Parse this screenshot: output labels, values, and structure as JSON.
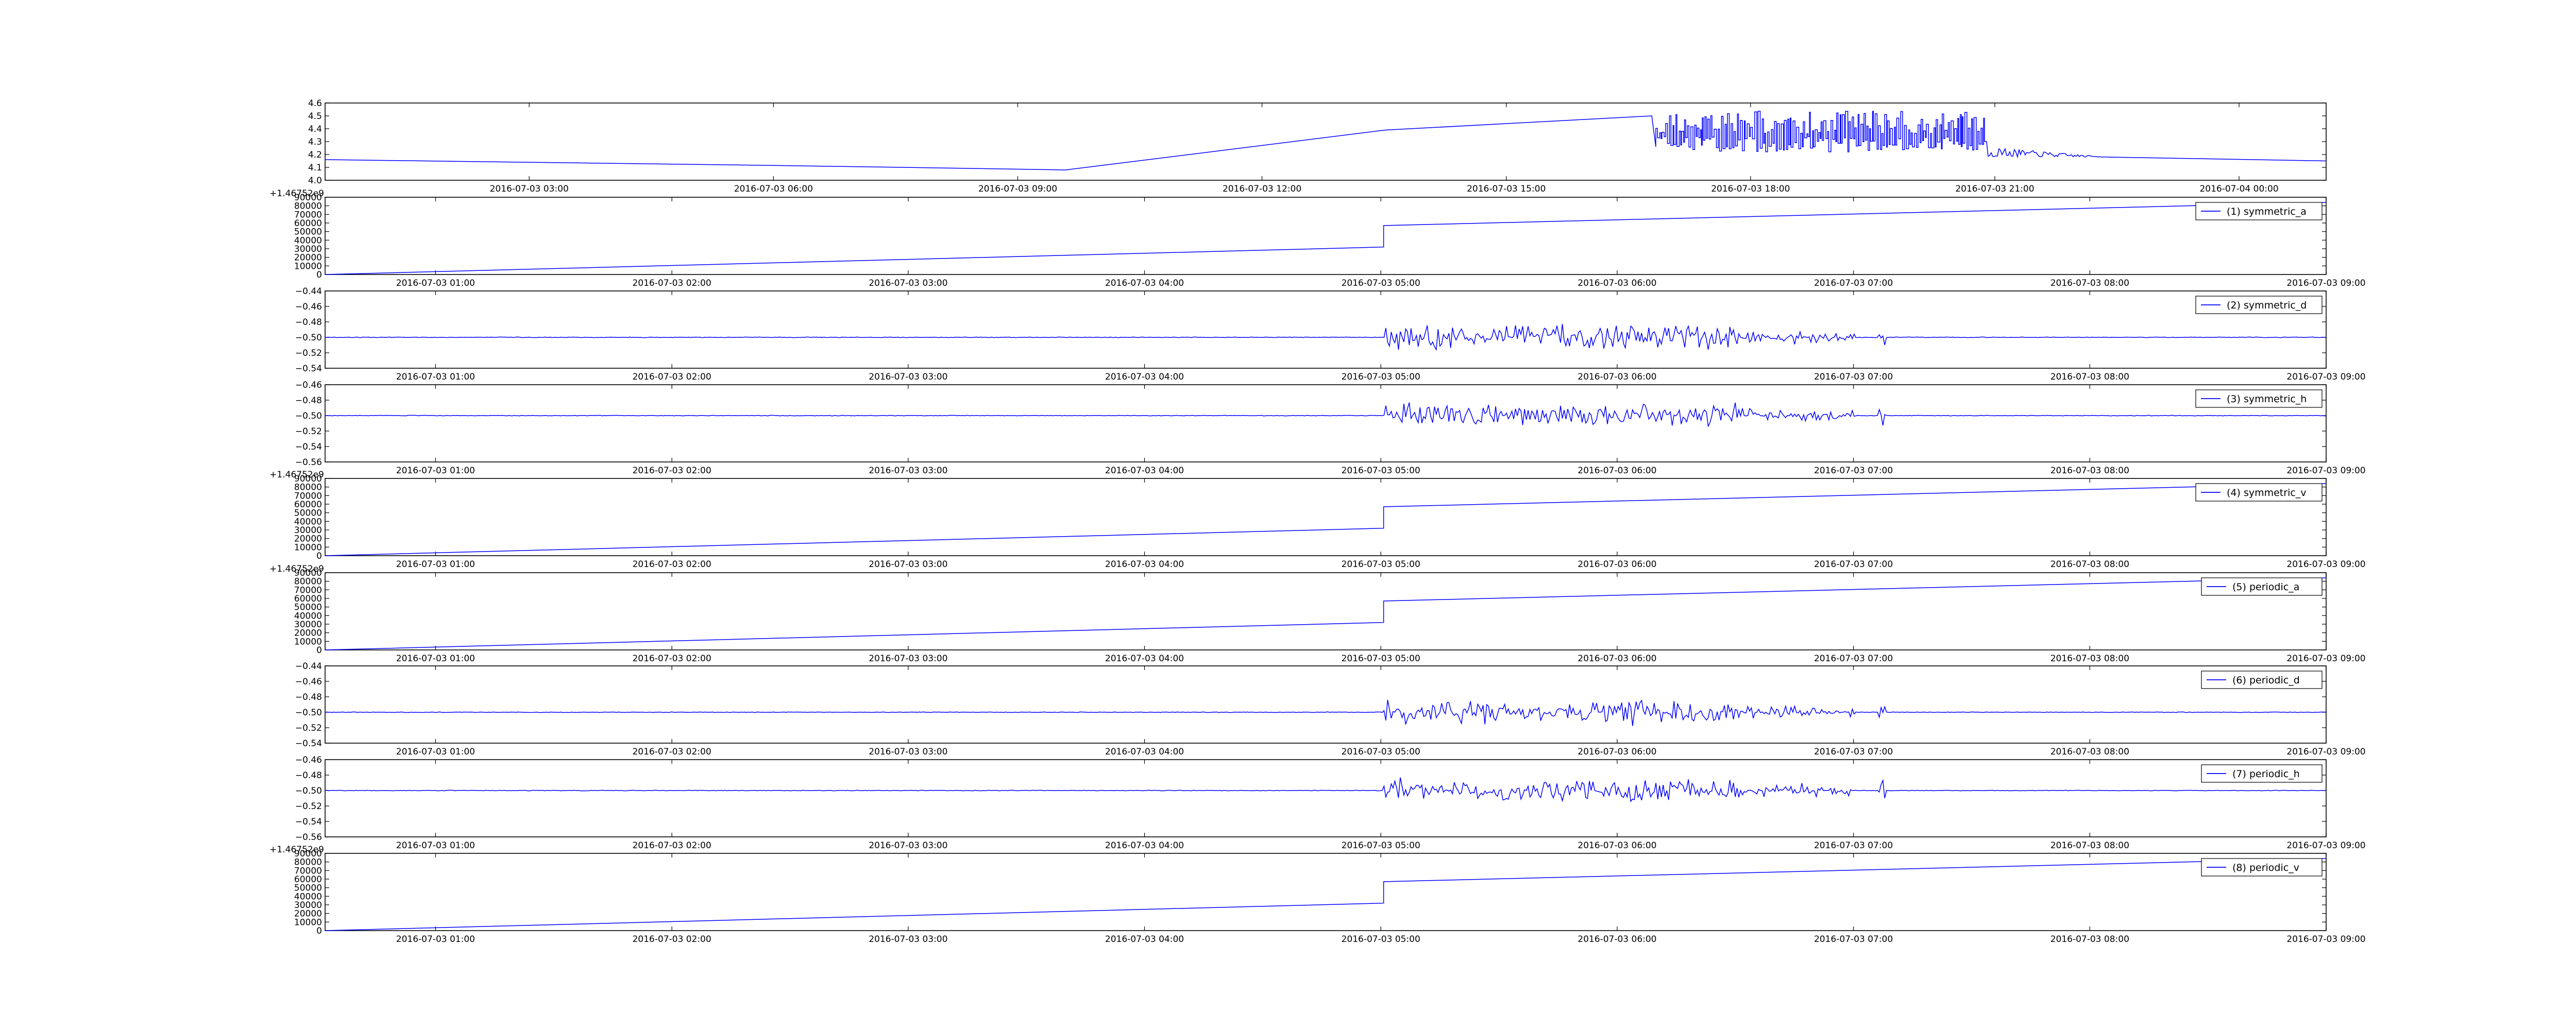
{
  "chart_data": [
    {
      "type": "line",
      "ylim": [
        4.0,
        4.6
      ],
      "yticks": [
        "4.0",
        "4.1",
        "4.2",
        "4.3",
        "4.4",
        "4.5",
        "4.6"
      ],
      "xticks": [
        "2016-07-03 03:00",
        "2016-07-03 06:00",
        "2016-07-03 09:00",
        "2016-07-03 12:00",
        "2016-07-03 15:00",
        "2016-07-03 18:00",
        "2016-07-03 21:00",
        "2016-07-04 00:00"
      ],
      "offset": "",
      "series": [
        {
          "name": "",
          "color": "#0000ff",
          "style": "top",
          "points": [
            [
              0,
              4.16
            ],
            [
              0.1,
              4.14
            ],
            [
              0.2,
              4.12
            ],
            [
              0.29,
              4.1
            ],
            [
              0.37,
              4.08
            ],
            [
              0.53,
              4.39
            ],
            [
              0.663,
              4.5
            ],
            [
              0.665,
              4.26
            ]
          ]
        }
      ],
      "grid": false
    },
    {
      "type": "line",
      "ylim": [
        0,
        90000
      ],
      "yticks": [
        "0",
        "10000",
        "20000",
        "30000",
        "40000",
        "50000",
        "60000",
        "70000",
        "80000",
        "90000"
      ],
      "xticks": [
        "2016-07-03 01:00",
        "2016-07-03 02:00",
        "2016-07-03 03:00",
        "2016-07-03 04:00",
        "2016-07-03 05:00",
        "2016-07-03 06:00",
        "2016-07-03 07:00",
        "2016-07-03 08:00",
        "2016-07-03 09:00"
      ],
      "offset": "+1.46752e9",
      "series": [
        {
          "name": "(1) symmetric_a",
          "color": "#0000ff",
          "style": "ramp",
          "points": [
            [
              0,
              0
            ],
            [
              0.529,
              32000
            ],
            [
              0.529,
              57000
            ],
            [
              1.0,
              84000
            ]
          ]
        }
      ],
      "legend": "top-right",
      "grid": false
    },
    {
      "type": "line",
      "ylim": [
        -0.54,
        -0.44
      ],
      "yticks": [
        "−0.54",
        "−0.52",
        "−0.50",
        "−0.48",
        "−0.46",
        "−0.44"
      ],
      "xticks": [
        "2016-07-03 01:00",
        "2016-07-03 02:00",
        "2016-07-03 03:00",
        "2016-07-03 04:00",
        "2016-07-03 05:00",
        "2016-07-03 06:00",
        "2016-07-03 07:00",
        "2016-07-03 08:00",
        "2016-07-03 09:00"
      ],
      "offset": "",
      "series": [
        {
          "name": "(2) symmetric_d",
          "color": "#0000ff",
          "style": "noise",
          "baseline": -0.5
        }
      ],
      "legend": "top-right",
      "grid": false
    },
    {
      "type": "line",
      "ylim": [
        -0.56,
        -0.46
      ],
      "yticks": [
        "−0.56",
        "−0.54",
        "−0.52",
        "−0.50",
        "−0.48",
        "−0.46"
      ],
      "xticks": [
        "2016-07-03 01:00",
        "2016-07-03 02:00",
        "2016-07-03 03:00",
        "2016-07-03 04:00",
        "2016-07-03 05:00",
        "2016-07-03 06:00",
        "2016-07-03 07:00",
        "2016-07-03 08:00",
        "2016-07-03 09:00"
      ],
      "offset": "",
      "series": [
        {
          "name": "(3) symmetric_h",
          "color": "#0000ff",
          "style": "noise",
          "baseline": -0.5
        }
      ],
      "legend": "top-right",
      "grid": false
    },
    {
      "type": "line",
      "ylim": [
        0,
        90000
      ],
      "yticks": [
        "0",
        "10000",
        "20000",
        "30000",
        "40000",
        "50000",
        "60000",
        "70000",
        "80000",
        "90000"
      ],
      "xticks": [
        "2016-07-03 01:00",
        "2016-07-03 02:00",
        "2016-07-03 03:00",
        "2016-07-03 04:00",
        "2016-07-03 05:00",
        "2016-07-03 06:00",
        "2016-07-03 07:00",
        "2016-07-03 08:00",
        "2016-07-03 09:00"
      ],
      "offset": "+1.46752e9",
      "series": [
        {
          "name": "(4) symmetric_v",
          "color": "#0000ff",
          "style": "ramp",
          "points": [
            [
              0,
              0
            ],
            [
              0.529,
              32000
            ],
            [
              0.529,
              57000
            ],
            [
              1.0,
              84000
            ]
          ]
        }
      ],
      "legend": "top-right",
      "grid": false
    },
    {
      "type": "line",
      "ylim": [
        0,
        90000
      ],
      "yticks": [
        "0",
        "10000",
        "20000",
        "30000",
        "40000",
        "50000",
        "60000",
        "70000",
        "80000",
        "90000"
      ],
      "xticks": [
        "2016-07-03 01:00",
        "2016-07-03 02:00",
        "2016-07-03 03:00",
        "2016-07-03 04:00",
        "2016-07-03 05:00",
        "2016-07-03 06:00",
        "2016-07-03 07:00",
        "2016-07-03 08:00",
        "2016-07-03 09:00"
      ],
      "offset": "+1.46752e9",
      "series": [
        {
          "name": "(5) periodic_a",
          "color": "#0000ff",
          "style": "ramp",
          "points": [
            [
              0,
              0
            ],
            [
              0.529,
              32000
            ],
            [
              0.529,
              57000
            ],
            [
              1.0,
              84000
            ]
          ]
        }
      ],
      "legend": "top-right",
      "grid": false
    },
    {
      "type": "line",
      "ylim": [
        -0.54,
        -0.44
      ],
      "yticks": [
        "−0.54",
        "−0.52",
        "−0.50",
        "−0.48",
        "−0.46",
        "−0.44"
      ],
      "xticks": [
        "2016-07-03 01:00",
        "2016-07-03 02:00",
        "2016-07-03 03:00",
        "2016-07-03 04:00",
        "2016-07-03 05:00",
        "2016-07-03 06:00",
        "2016-07-03 07:00",
        "2016-07-03 08:00",
        "2016-07-03 09:00"
      ],
      "offset": "",
      "series": [
        {
          "name": "(6) periodic_d",
          "color": "#0000ff",
          "style": "noise",
          "baseline": -0.5
        }
      ],
      "legend": "top-right",
      "grid": false
    },
    {
      "type": "line",
      "ylim": [
        -0.56,
        -0.46
      ],
      "yticks": [
        "−0.56",
        "−0.54",
        "−0.52",
        "−0.50",
        "−0.48",
        "−0.46"
      ],
      "xticks": [
        "2016-07-03 01:00",
        "2016-07-03 02:00",
        "2016-07-03 03:00",
        "2016-07-03 04:00",
        "2016-07-03 05:00",
        "2016-07-03 06:00",
        "2016-07-03 07:00",
        "2016-07-03 08:00",
        "2016-07-03 09:00"
      ],
      "offset": "",
      "series": [
        {
          "name": "(7) periodic_h",
          "color": "#0000ff",
          "style": "noise",
          "baseline": -0.5
        }
      ],
      "legend": "top-right",
      "grid": false
    },
    {
      "type": "line",
      "ylim": [
        0,
        90000
      ],
      "yticks": [
        "0",
        "10000",
        "20000",
        "30000",
        "40000",
        "50000",
        "60000",
        "70000",
        "80000",
        "90000"
      ],
      "xticks": [
        "2016-07-03 01:00",
        "2016-07-03 02:00",
        "2016-07-03 03:00",
        "2016-07-03 04:00",
        "2016-07-03 05:00",
        "2016-07-03 06:00",
        "2016-07-03 07:00",
        "2016-07-03 08:00",
        "2016-07-03 09:00"
      ],
      "offset": "+1.46752e9",
      "series": [
        {
          "name": "(8) periodic_v",
          "color": "#0000ff",
          "style": "ramp",
          "points": [
            [
              0,
              0
            ],
            [
              0.529,
              32000
            ],
            [
              0.529,
              57000
            ],
            [
              1.0,
              84000
            ]
          ]
        }
      ],
      "legend": "top-right",
      "grid": false
    }
  ]
}
